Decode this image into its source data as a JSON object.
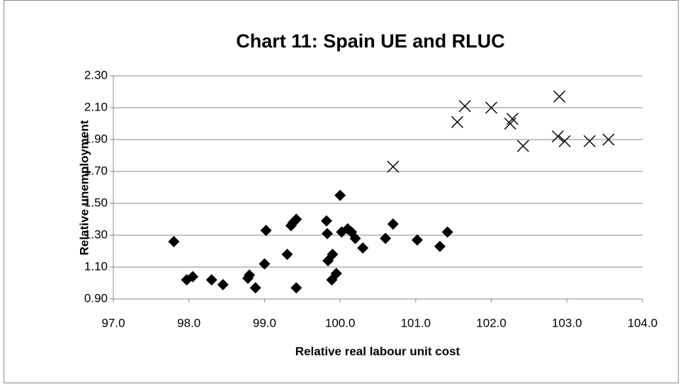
{
  "chart_data": {
    "type": "scatter",
    "title": "Chart 11: Spain UE and RLUC",
    "x_label": "Relative real labour unit cost",
    "y_label": "Relative unemployment",
    "xlim": [
      97,
      104
    ],
    "xticks": [
      {
        "value": 97,
        "label": "97.0"
      },
      {
        "value": 98,
        "label": "98.0"
      },
      {
        "value": 99,
        "label": "99.0"
      },
      {
        "value": 100,
        "label": "100.0"
      },
      {
        "value": 101,
        "label": "101.0"
      },
      {
        "value": 102,
        "label": "102.0"
      },
      {
        "value": 103,
        "label": "103.0"
      },
      {
        "value": 104,
        "label": "104.0"
      }
    ],
    "ylim": [
      0.9,
      2.3
    ],
    "yticks": [
      {
        "value": 0.9,
        "label": "0.90"
      },
      {
        "value": 1.1,
        "label": "1.10"
      },
      {
        "value": 1.3,
        "label": "1.30"
      },
      {
        "value": 1.5,
        "label": "1.50"
      },
      {
        "value": 1.7,
        "label": "1.70"
      },
      {
        "value": 1.9,
        "label": "1.90"
      },
      {
        "value": 2.1,
        "label": "2.10"
      },
      {
        "value": 2.3,
        "label": "2.30"
      }
    ],
    "grid": true,
    "series": [
      {
        "marker": "diamond",
        "color": "#000000",
        "x": [
          97.8,
          97.97,
          98.05,
          98.3,
          98.45,
          98.78,
          98.8,
          98.88,
          99.0,
          99.02,
          99.3,
          99.35,
          99.38,
          99.42,
          99.42,
          99.82,
          99.83,
          99.84,
          99.89,
          99.9,
          99.95,
          100.0,
          100.02,
          100.1,
          100.15,
          100.2,
          100.3,
          100.6,
          100.7,
          101.02,
          101.32,
          101.42
        ],
        "values": [
          1.26,
          1.02,
          1.04,
          1.02,
          0.99,
          1.03,
          1.05,
          0.97,
          1.12,
          1.33,
          1.18,
          1.36,
          1.38,
          1.4,
          0.97,
          1.39,
          1.31,
          1.14,
          1.02,
          1.18,
          1.06,
          1.55,
          1.32,
          1.34,
          1.32,
          1.28,
          1.22,
          1.28,
          1.37,
          1.27,
          1.23,
          1.32
        ]
      },
      {
        "marker": "x",
        "color": "#000000",
        "x": [
          100.7,
          101.55,
          101.65,
          102.0,
          102.25,
          102.28,
          102.42,
          102.9,
          102.88,
          102.97,
          103.3,
          103.55
        ],
        "values": [
          1.73,
          2.01,
          2.11,
          2.1,
          2.0,
          2.03,
          1.86,
          2.17,
          1.92,
          1.89,
          1.89,
          1.9
        ]
      }
    ]
  }
}
